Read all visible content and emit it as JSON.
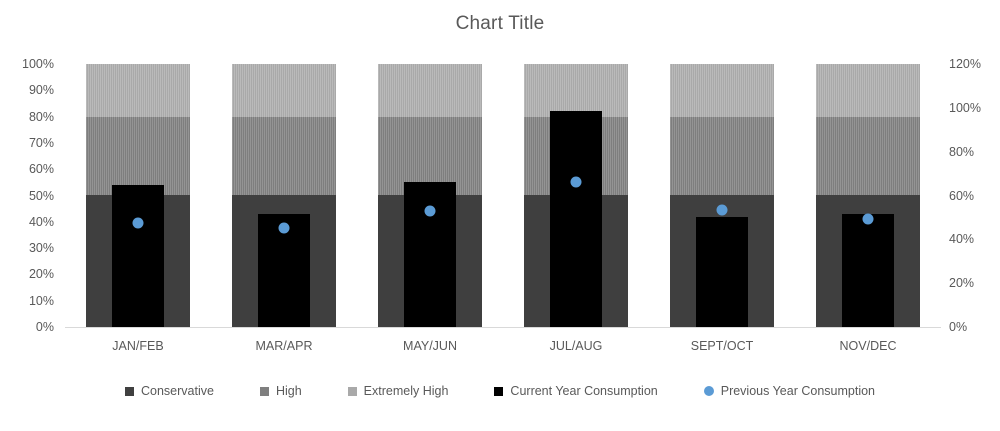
{
  "title": "Chart Title",
  "chart_data": {
    "type": "bar",
    "subtype": "stacked-bands-with-overlay-bars-and-points",
    "title": "Chart Title",
    "categories": [
      "JAN/FEB",
      "MAR/APR",
      "MAY/JUN",
      "JUL/AUG",
      "SEPT/OCT",
      "NOV/DEC"
    ],
    "stacked_series": [
      {
        "name": "Conservative",
        "color": "#3f3f3f",
        "values": [
          50,
          50,
          50,
          50,
          50,
          50
        ]
      },
      {
        "name": "High",
        "color": "#7f7f7f",
        "values": [
          30,
          30,
          30,
          30,
          30,
          30
        ]
      },
      {
        "name": "Extremely High",
        "color": "#a9a9a9",
        "values": [
          20,
          20,
          20,
          20,
          20,
          20
        ]
      }
    ],
    "overlay_bar_series": {
      "name": "Current Year Consumption",
      "color": "#000000",
      "axis_read": "left-primary-percent",
      "values": [
        54,
        43,
        55,
        82,
        42,
        43
      ]
    },
    "point_series": {
      "name": "Previous Year Consumption",
      "color": "#5b9bd5",
      "axis_read": "left-primary-percent",
      "values": [
        39.5,
        37.5,
        44,
        55,
        44.5,
        41
      ]
    },
    "left_axis": {
      "min": 0,
      "max": 100,
      "ticks": [
        "100%",
        "90%",
        "80%",
        "70%",
        "60%",
        "50%",
        "40%",
        "30%",
        "20%",
        "10%",
        "0%"
      ]
    },
    "right_axis": {
      "min": 0,
      "max": 120,
      "ticks": [
        "120%",
        "100%",
        "80%",
        "60%",
        "40%",
        "20%",
        "0%"
      ]
    },
    "grid": "off",
    "legend_position": "bottom",
    "legend": [
      {
        "label": "Conservative",
        "shape": "square",
        "color": "#404040"
      },
      {
        "label": "High",
        "shape": "square",
        "color": "#7f7f7f"
      },
      {
        "label": "Extremely High",
        "shape": "square",
        "color": "#a9a9a9"
      },
      {
        "label": "Current Year Consumption",
        "shape": "square",
        "color": "#000000"
      },
      {
        "label": "Previous Year Consumption",
        "shape": "circle",
        "color": "#5b9bd5"
      }
    ],
    "colors": {
      "text": "#595959",
      "axis_line": "#d9d9d9",
      "background": "#ffffff"
    }
  }
}
